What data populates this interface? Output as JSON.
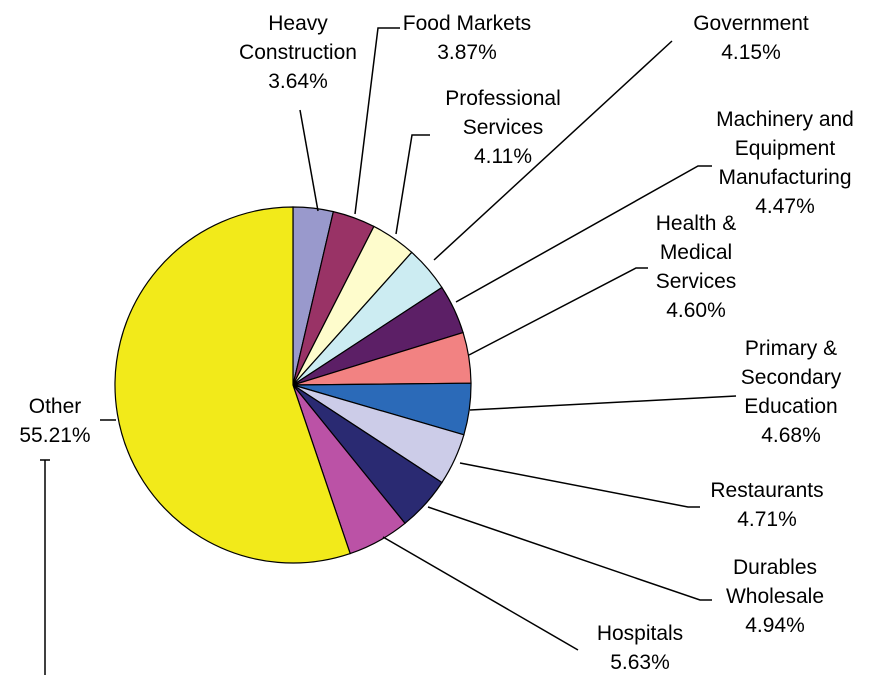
{
  "chart_data": {
    "type": "pie",
    "title": "",
    "slices": [
      {
        "label": "Heavy Construction",
        "value": 3.64,
        "value_label": "3.64%",
        "color": "#9999cc"
      },
      {
        "label": "Food Markets",
        "value": 3.87,
        "value_label": "3.87%",
        "color": "#993366"
      },
      {
        "label": "Professional Services",
        "value": 4.11,
        "value_label": "4.11%",
        "color": "#fefccc"
      },
      {
        "label": "Government",
        "value": 4.15,
        "value_label": "4.15%",
        "color": "#ccecf2"
      },
      {
        "label": "Machinery and Equipment Manufacturing",
        "value": 4.47,
        "value_label": "4.47%",
        "color": "#5c1f66"
      },
      {
        "label": "Health & Medical Services",
        "value": 4.6,
        "value_label": "4.60%",
        "color": "#f28282"
      },
      {
        "label": "Primary & Secondary Education",
        "value": 4.68,
        "value_label": "4.68%",
        "color": "#2b6ab8"
      },
      {
        "label": "Restaurants",
        "value": 4.71,
        "value_label": "4.71%",
        "color": "#cccce8"
      },
      {
        "label": "Durables Wholesale",
        "value": 4.94,
        "value_label": "4.94%",
        "color": "#2a2a72"
      },
      {
        "label": "Hospitals",
        "value": 5.63,
        "value_label": "5.63%",
        "color": "#bb52a6"
      },
      {
        "label": "Other",
        "value": 55.21,
        "value_label": "55.21%",
        "color": "#f2ea1a"
      }
    ]
  }
}
